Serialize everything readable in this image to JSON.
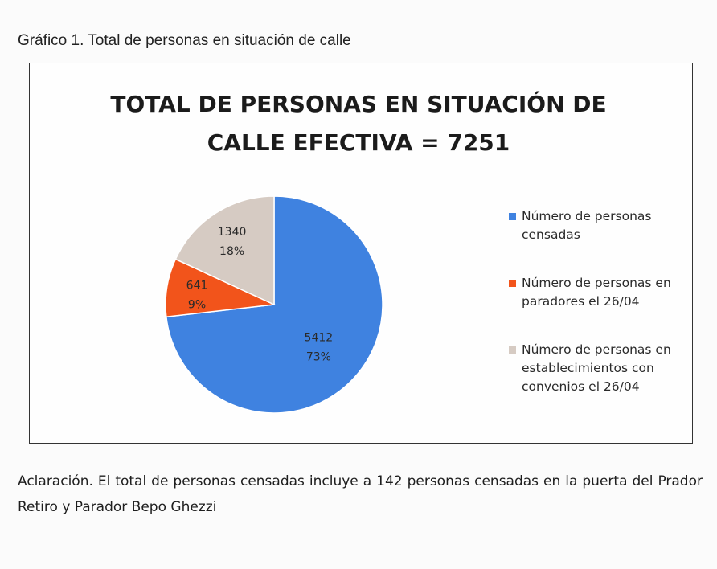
{
  "caption": "Gráfico 1. Total de personas en situación de calle",
  "note": "Aclaración. El total de personas censadas incluye a 142 personas censadas en la puerta del Prador Retiro y Parador Bepo Ghezzi",
  "chart_data": {
    "type": "pie",
    "title_lines": [
      "TOTAL DE PERSONAS EN SITUACIÓN DE",
      "CALLE EFECTIVA = 7251"
    ],
    "slices": [
      {
        "label": "Número de personas censadas",
        "value": 5412,
        "percent_label": "73%",
        "color": "#3f82e0"
      },
      {
        "label": "Número de personas en paradores el 26/04",
        "value": 641,
        "percent_label": "9%",
        "color": "#f2541b"
      },
      {
        "label": "Número de personas en establecimientos con convenios el 26/04",
        "value": 1340,
        "percent_label": "18%",
        "color": "#d6cbc3"
      }
    ],
    "legend_position": "right"
  }
}
